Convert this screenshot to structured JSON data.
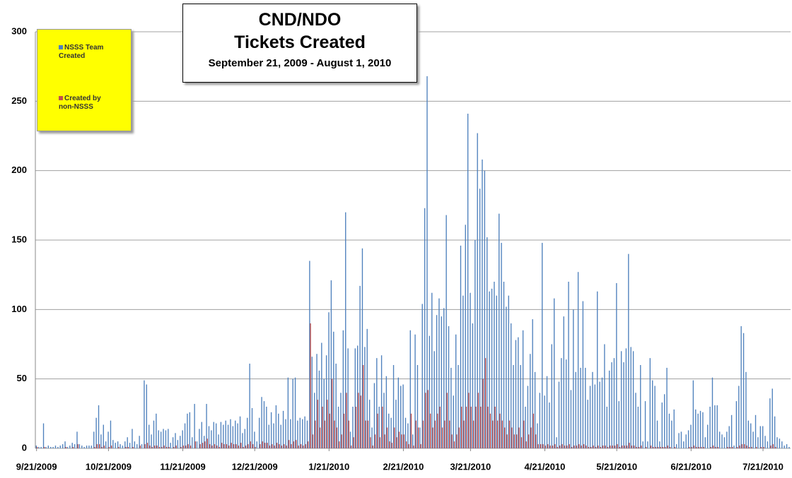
{
  "chart_data": {
    "type": "bar",
    "title": "CND/NDO",
    "title_line_2": "Tickets Created",
    "subtitle": "September 21, 2009 - August 1, 2010",
    "ylim": [
      0,
      300
    ],
    "yticks": [
      0,
      50,
      100,
      150,
      200,
      250,
      300
    ],
    "grid": true,
    "legend": "upper left",
    "categories": [
      "9/21/2009",
      null,
      null,
      null,
      null,
      null,
      null,
      null,
      null,
      null,
      null,
      null,
      null,
      null,
      null,
      null,
      null,
      null,
      null,
      null,
      null,
      null,
      null,
      null,
      null,
      null,
      null,
      null,
      null,
      null,
      "10/21/2009",
      null,
      null,
      null,
      null,
      null,
      null,
      null,
      null,
      null,
      null,
      null,
      null,
      null,
      null,
      null,
      null,
      null,
      null,
      null,
      null,
      null,
      null,
      null,
      null,
      null,
      null,
      null,
      null,
      null,
      null,
      "11/21/2009",
      null,
      null,
      null,
      null,
      null,
      null,
      null,
      null,
      null,
      null,
      null,
      null,
      null,
      null,
      null,
      null,
      null,
      null,
      null,
      null,
      null,
      null,
      null,
      null,
      null,
      null,
      null,
      null,
      null,
      "12/21/2009",
      null,
      null,
      null,
      null,
      null,
      null,
      null,
      null,
      null,
      null,
      null,
      null,
      null,
      null,
      null,
      null,
      null,
      null,
      null,
      null,
      null,
      null,
      null,
      null,
      null,
      null,
      null,
      null,
      null,
      null,
      "1/21/2010",
      null,
      null,
      null,
      null,
      null,
      null,
      null,
      null,
      null,
      null,
      null,
      null,
      null,
      null,
      null,
      null,
      null,
      null,
      null,
      null,
      null,
      null,
      null,
      null,
      null,
      null,
      null,
      null,
      null,
      null,
      "2/21/2010",
      null,
      null,
      null,
      null,
      null,
      null,
      null,
      null,
      null,
      null,
      null,
      null,
      null,
      null,
      null,
      null,
      null,
      null,
      null,
      null,
      null,
      null,
      null,
      null,
      null,
      null,
      null,
      "3/21/2010",
      null,
      null,
      null,
      null,
      null,
      null,
      null,
      null,
      null,
      null,
      null,
      null,
      null,
      null,
      null,
      null,
      null,
      null,
      null,
      null,
      null,
      null,
      null,
      null,
      null,
      null,
      null,
      null,
      null,
      null,
      "4/21/2010",
      null,
      null,
      null,
      null,
      null,
      null,
      null,
      null,
      null,
      null,
      null,
      null,
      null,
      null,
      null,
      null,
      null,
      null,
      null,
      null,
      null,
      null,
      null,
      null,
      null,
      null,
      null,
      null,
      null,
      "5/21/2010",
      null,
      null,
      null,
      null,
      null,
      null,
      null,
      null,
      null,
      null,
      null,
      null,
      null,
      null,
      null,
      null,
      null,
      null,
      null,
      null,
      null,
      null,
      null,
      null,
      null,
      null,
      null,
      null,
      null,
      null,
      "6/21/2010",
      null,
      null,
      null,
      null,
      null,
      null,
      null,
      null,
      null,
      null,
      null,
      null,
      null,
      null,
      null,
      null,
      null,
      null,
      null,
      null,
      null,
      null,
      null,
      null,
      null,
      null,
      null,
      null,
      null,
      "7/21/2010",
      null,
      null,
      null,
      null,
      null,
      null,
      null,
      null,
      null,
      null,
      null
    ],
    "series": [
      {
        "name": "NSSS Team Created",
        "color": "#4f81bd",
        "values": [
          2,
          1,
          1,
          18,
          1,
          2,
          1,
          1,
          2,
          1,
          2,
          3,
          5,
          1,
          2,
          4,
          3,
          12,
          3,
          2,
          1,
          2,
          2,
          2,
          12,
          22,
          31,
          10,
          17,
          5,
          12,
          20,
          6,
          4,
          5,
          3,
          2,
          5,
          8,
          4,
          14,
          5,
          3,
          9,
          3,
          49,
          46,
          17,
          10,
          20,
          25,
          13,
          12,
          14,
          13,
          14,
          4,
          8,
          11,
          6,
          9,
          13,
          18,
          25,
          26,
          8,
          32,
          5,
          14,
          19,
          9,
          32,
          16,
          13,
          19,
          18,
          10,
          19,
          17,
          20,
          17,
          21,
          16,
          20,
          18,
          23,
          11,
          14,
          22,
          61,
          29,
          12,
          5,
          22,
          37,
          34,
          30,
          17,
          26,
          18,
          31,
          25,
          17,
          27,
          21,
          51,
          21,
          50,
          51,
          20,
          22,
          21,
          23,
          20,
          135,
          66,
          40,
          68,
          56,
          76,
          50,
          67,
          98,
          121,
          84,
          61,
          30,
          40,
          85,
          170,
          72,
          12,
          30,
          72,
          74,
          117,
          144,
          73,
          86,
          35,
          15,
          47,
          65,
          30,
          67,
          40,
          52,
          25,
          22,
          60,
          35,
          51,
          45,
          46,
          22,
          18,
          85,
          10,
          82,
          60,
          15,
          104,
          173,
          268,
          81,
          112,
          70,
          96,
          108,
          95,
          101,
          168,
          88,
          58,
          38,
          82,
          60,
          146,
          110,
          161,
          241,
          112,
          90,
          150,
          227,
          187,
          208,
          200,
          152,
          113,
          115,
          120,
          110,
          169,
          148,
          120,
          102,
          110,
          90,
          60,
          78,
          80,
          60,
          85,
          30,
          45,
          68,
          93,
          55,
          18,
          40,
          148,
          38,
          52,
          33,
          75,
          108,
          8,
          48,
          65,
          95,
          64,
          120,
          42,
          100,
          55,
          127,
          58,
          106,
          58,
          35,
          45,
          55,
          46,
          113,
          48,
          51,
          75,
          30,
          56,
          62,
          65,
          119,
          34,
          70,
          62,
          72,
          140,
          73,
          70,
          40,
          30,
          60,
          5,
          34,
          5,
          65,
          49,
          45,
          20,
          5,
          33,
          39,
          58,
          25,
          20,
          28,
          3,
          11,
          12,
          5,
          10,
          13,
          17,
          49,
          28,
          25,
          27,
          26,
          8,
          17,
          30,
          51,
          31,
          31,
          12,
          10,
          8,
          12,
          16,
          24,
          2,
          34,
          45,
          88,
          83,
          55,
          20,
          18,
          12,
          24,
          8,
          16,
          16,
          9,
          5,
          36,
          43,
          23,
          8,
          7,
          5,
          2,
          3,
          1
        ]
      },
      {
        "name": "Created by non-NSSS",
        "color": "#c0504d",
        "values": [
          1,
          0,
          0,
          1,
          0,
          0,
          0,
          0,
          0,
          0,
          0,
          0,
          1,
          0,
          0,
          1,
          0,
          3,
          0,
          0,
          0,
          0,
          0,
          0,
          1,
          3,
          3,
          1,
          2,
          0,
          1,
          2,
          0,
          0,
          1,
          0,
          0,
          1,
          1,
          0,
          1,
          0,
          0,
          2,
          0,
          3,
          4,
          2,
          1,
          2,
          2,
          1,
          1,
          2,
          1,
          1,
          0,
          1,
          2,
          0,
          1,
          2,
          2,
          3,
          2,
          0,
          5,
          0,
          3,
          4,
          5,
          7,
          3,
          2,
          3,
          2,
          1,
          4,
          3,
          3,
          2,
          4,
          3,
          3,
          2,
          4,
          1,
          2,
          3,
          5,
          3,
          1,
          0,
          3,
          5,
          4,
          4,
          2,
          3,
          2,
          4,
          3,
          2,
          3,
          2,
          6,
          3,
          5,
          6,
          2,
          3,
          2,
          3,
          5,
          90,
          10,
          20,
          35,
          15,
          30,
          20,
          35,
          25,
          50,
          20,
          15,
          5,
          10,
          25,
          40,
          20,
          2,
          8,
          30,
          40,
          38,
          60,
          20,
          20,
          8,
          2,
          10,
          25,
          8,
          30,
          10,
          15,
          5,
          4,
          15,
          8,
          12,
          10,
          10,
          5,
          3,
          25,
          2,
          20,
          15,
          3,
          20,
          40,
          42,
          25,
          15,
          20,
          25,
          30,
          15,
          20,
          40,
          20,
          10,
          5,
          10,
          15,
          30,
          20,
          30,
          40,
          30,
          20,
          30,
          40,
          30,
          50,
          65,
          30,
          25,
          20,
          30,
          20,
          25,
          20,
          15,
          10,
          20,
          15,
          10,
          10,
          15,
          8,
          20,
          5,
          10,
          15,
          25,
          10,
          3,
          3,
          3,
          2,
          3,
          2,
          2,
          3,
          1,
          2,
          3,
          2,
          2,
          3,
          1,
          2,
          2,
          3,
          2,
          3,
          2,
          1,
          1,
          2,
          1,
          2,
          1,
          2,
          2,
          1,
          2,
          2,
          2,
          3,
          1,
          2,
          2,
          2,
          4,
          2,
          2,
          1,
          1,
          2,
          0,
          1,
          0,
          2,
          1,
          1,
          1,
          1,
          1,
          1,
          2,
          1,
          0,
          1,
          0,
          0,
          0,
          0,
          0,
          1,
          1,
          2,
          1,
          1,
          1,
          1,
          0,
          0,
          1,
          2,
          1,
          1,
          0,
          0,
          0,
          1,
          1,
          1,
          0,
          1,
          2,
          3,
          3,
          2,
          1,
          1,
          0,
          1,
          0,
          1,
          1,
          0,
          0,
          2,
          3,
          1,
          0,
          0,
          0,
          0,
          0,
          0
        ]
      }
    ]
  }
}
